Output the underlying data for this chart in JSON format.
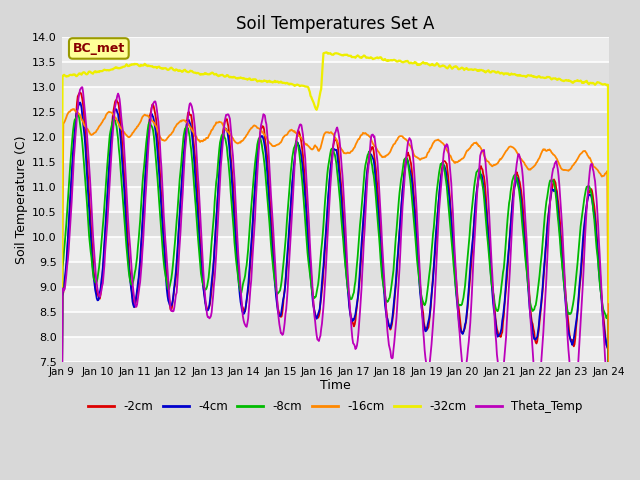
{
  "title": "Soil Temperatures Set A",
  "xlabel": "Time",
  "ylabel": "Soil Temperature (C)",
  "ylim": [
    7.5,
    14.0
  ],
  "yticks": [
    7.5,
    8.0,
    8.5,
    9.0,
    9.5,
    10.0,
    10.5,
    11.0,
    11.5,
    12.0,
    12.5,
    13.0,
    13.5,
    14.0
  ],
  "xtick_labels": [
    "Jan 9",
    "Jan 10",
    "Jan 11",
    "Jan 12",
    "Jan 13",
    "Jan 14",
    "Jan 15",
    "Jan 16",
    "Jan 17",
    "Jan 18",
    "Jan 19",
    "Jan 20",
    "Jan 21",
    "Jan 22",
    "Jan 23",
    "Jan 24"
  ],
  "series": {
    "-2cm": {
      "color": "#dd0000"
    },
    "-4cm": {
      "color": "#0000cc"
    },
    "-8cm": {
      "color": "#00bb00"
    },
    "-16cm": {
      "color": "#ff8800"
    },
    "-32cm": {
      "color": "#eeee00"
    },
    "Theta_Temp": {
      "color": "#bb00bb"
    }
  },
  "bc_met_label": "BC_met",
  "bc_met_text_color": "#880000",
  "bc_met_bg_color": "#ffff99",
  "bc_met_edge_color": "#999900",
  "background_color": "#d8d8d8",
  "plot_bg_light": "#ececec",
  "plot_bg_dark": "#e0e0e0",
  "grid_color": "#ffffff",
  "n_points": 720
}
